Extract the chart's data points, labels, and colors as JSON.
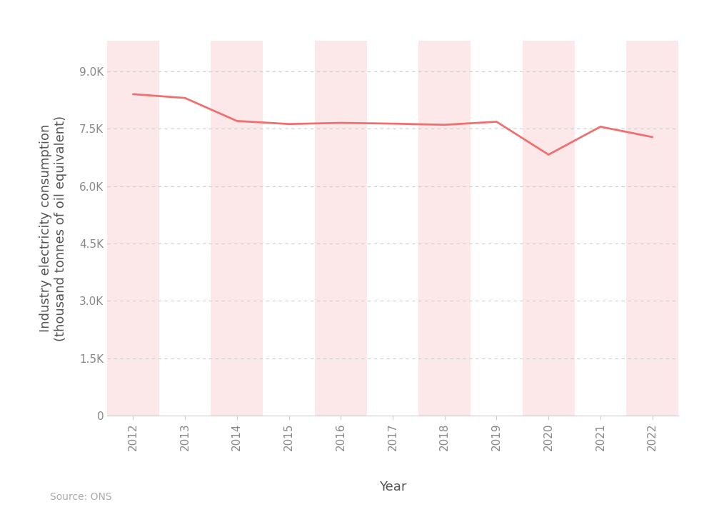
{
  "years": [
    2012,
    2013,
    2014,
    2015,
    2016,
    2017,
    2018,
    2019,
    2020,
    2021,
    2022
  ],
  "values": [
    8400,
    8300,
    7700,
    7620,
    7650,
    7630,
    7600,
    7680,
    6820,
    7550,
    7280
  ],
  "line_color": "#f07070",
  "line_width": 2.0,
  "band_color": "#fce8e8",
  "band_years": [
    2012,
    2014,
    2016,
    2018,
    2020,
    2022
  ],
  "yticks": [
    0,
    1500,
    3000,
    4500,
    6000,
    7500,
    9000
  ],
  "ytick_labels": [
    "0",
    "1.5K",
    "3.0K",
    "4.5K",
    "6.0K",
    "7.5K",
    "9.0K"
  ],
  "ylim": [
    0,
    9800
  ],
  "xlim": [
    2011.5,
    2022.5
  ],
  "ylabel": "Industry electricity consumption\n(thousand tonnes of oil equivalent)",
  "xlabel": "Year",
  "source": "Source: ONS",
  "grid_color": "#cccccc",
  "background_color": "#ffffff",
  "label_fontsize": 13,
  "tick_fontsize": 11,
  "source_fontsize": 10
}
